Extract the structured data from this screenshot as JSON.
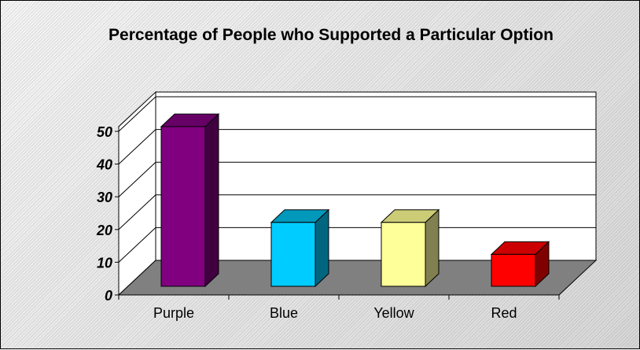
{
  "chart_data": {
    "type": "bar",
    "title": "Percentage of People who Supported a Particular Option",
    "categories": [
      "Purple",
      "Blue",
      "Yellow",
      "Red"
    ],
    "values": [
      50,
      20,
      20,
      10
    ],
    "ylim": [
      0,
      50
    ],
    "yticks": [
      "0",
      "10",
      "20",
      "30",
      "40",
      "50"
    ],
    "grid": true,
    "legend": "none",
    "three_d": true,
    "colors": [
      {
        "front": "#800080",
        "top": "#660066",
        "side": "#400040"
      },
      {
        "front": "#00ccff",
        "top": "#0099bb",
        "side": "#006680"
      },
      {
        "front": "#ffff99",
        "top": "#cccc77",
        "side": "#808050"
      },
      {
        "front": "#ff0000",
        "top": "#cc0000",
        "side": "#800000"
      }
    ],
    "floor_color": "#808080"
  }
}
